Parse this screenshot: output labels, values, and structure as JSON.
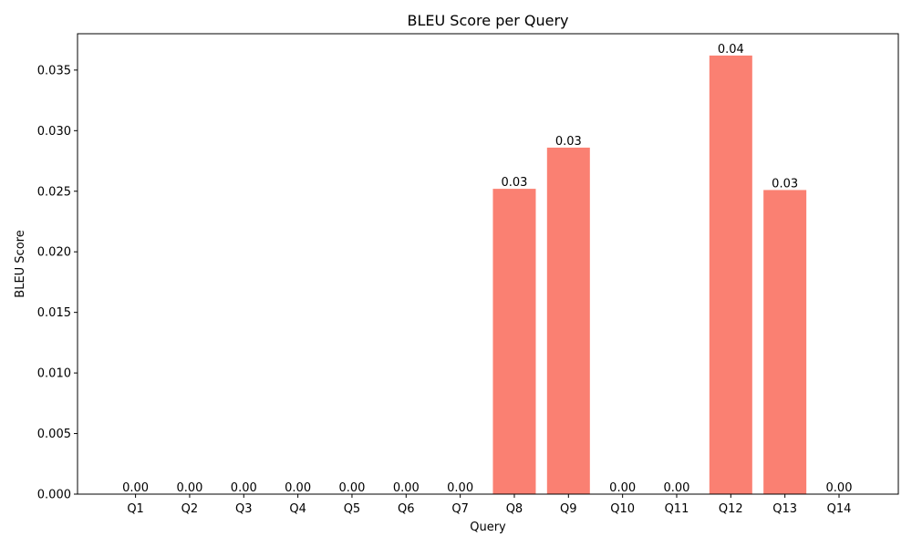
{
  "chart_data": {
    "type": "bar",
    "title": "BLEU Score per Query",
    "xlabel": "Query",
    "ylabel": "BLEU Score",
    "categories": [
      "Q1",
      "Q2",
      "Q3",
      "Q4",
      "Q5",
      "Q6",
      "Q7",
      "Q8",
      "Q9",
      "Q10",
      "Q11",
      "Q12",
      "Q13",
      "Q14"
    ],
    "values": [
      0,
      0,
      0,
      0,
      0,
      0,
      0,
      0.0252,
      0.0286,
      0,
      0,
      0.0362,
      0.0251,
      0
    ],
    "data_labels": [
      "0.00",
      "0.00",
      "0.00",
      "0.00",
      "0.00",
      "0.00",
      "0.00",
      "0.03",
      "0.03",
      "0.00",
      "0.00",
      "0.04",
      "0.03",
      "0.00"
    ],
    "ylim": [
      0,
      0.038
    ],
    "yticks": [
      0,
      0.005,
      0.01,
      0.015,
      0.02,
      0.025,
      0.03,
      0.035
    ],
    "ytick_labels": [
      "0.000",
      "0.005",
      "0.010",
      "0.015",
      "0.020",
      "0.025",
      "0.030",
      "0.035"
    ],
    "bar_color": "#fa8072",
    "grid": false,
    "legend": "none"
  }
}
